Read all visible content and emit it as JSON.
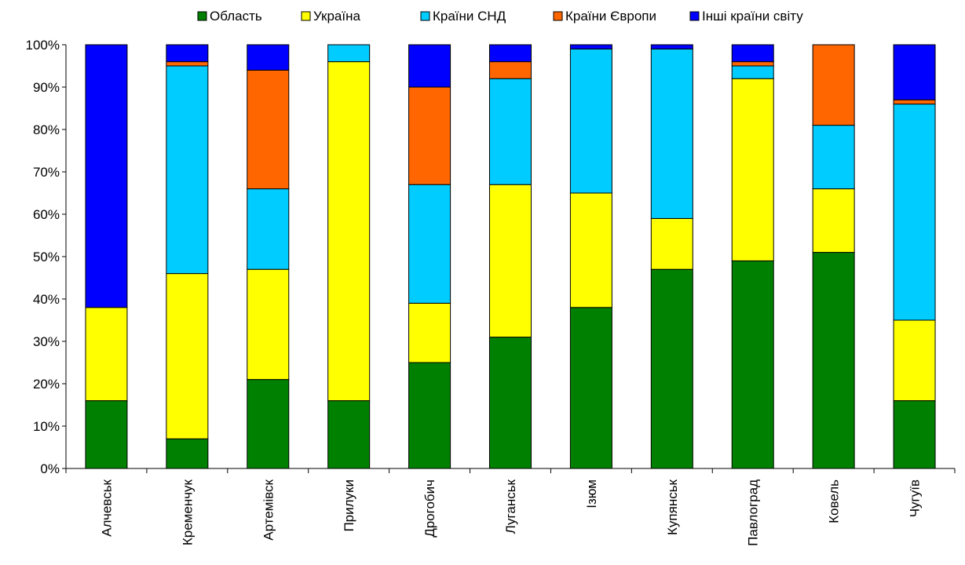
{
  "chart_data": {
    "type": "bar",
    "stacked": true,
    "normalized": true,
    "categories": [
      "Алчевськ",
      "Кременчук",
      "Артемівск",
      "Прилуки",
      "Дрогобич",
      "Луганськ",
      "Ізюм",
      "Купянськ",
      "Павлоград",
      "Ковель",
      "Чугуїв"
    ],
    "series": [
      {
        "name": "Область",
        "color": "#008000",
        "values": [
          16,
          7,
          21,
          16,
          25,
          31,
          38,
          47,
          49,
          51,
          16
        ]
      },
      {
        "name": "Україна",
        "color": "#ffff00",
        "values": [
          22,
          39,
          26,
          80,
          14,
          36,
          27,
          12,
          43,
          15,
          19
        ]
      },
      {
        "name": "Країни СНД",
        "color": "#00ccff",
        "values": [
          0,
          49,
          19,
          4,
          28,
          25,
          34,
          40,
          3,
          15,
          51
        ]
      },
      {
        "name": "Країни Європи",
        "color": "#ff6600",
        "values": [
          0,
          1,
          28,
          0,
          23,
          4,
          0,
          0,
          1,
          19,
          1
        ]
      },
      {
        "name": "Інші країни світу",
        "color": "#0000ff",
        "values": [
          62,
          4,
          6,
          0,
          10,
          4,
          1,
          1,
          4,
          0,
          13
        ]
      }
    ],
    "y_ticks": [
      "0%",
      "10%",
      "20%",
      "30%",
      "40%",
      "50%",
      "60%",
      "70%",
      "80%",
      "90%",
      "100%"
    ],
    "ylim": [
      0,
      100
    ],
    "grid": false,
    "legend_position": "top",
    "title": "",
    "xlabel": "",
    "ylabel": ""
  }
}
